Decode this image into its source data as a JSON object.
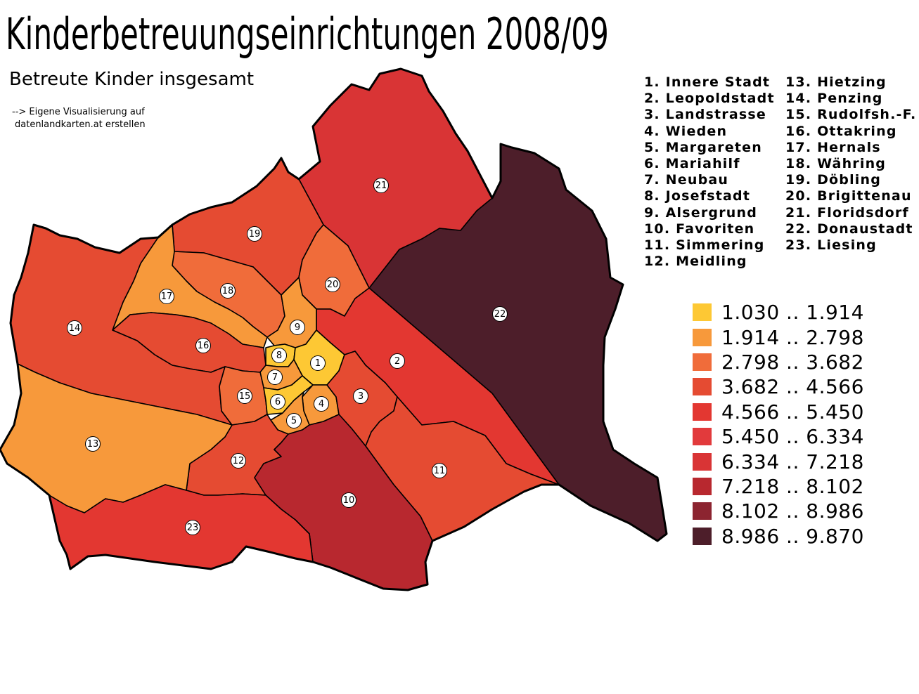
{
  "title": "Kinderbetreuungseinrichtungen 2008/09",
  "subtitle": "Betreute Kinder insgesamt",
  "note": {
    "line1": "--> Eigene Visualisierung auf",
    "line2": "datenlandkarten.at erstellen"
  },
  "district_names": {
    "column1": [
      "1. Innere Stadt",
      "2. Leopoldstadt",
      "3. Landstrasse",
      "4. Wieden",
      "5. Margareten",
      "6. Mariahilf",
      "7. Neubau",
      "8. Josefstadt",
      "9. Alsergrund",
      "10. Favoriten",
      "11. Simmering",
      "12. Meidling"
    ],
    "column2": [
      "13. Hietzing",
      "14. Penzing",
      "15. Rudolfsh.-F.",
      "16. Ottakring",
      "17. Hernals",
      "18. Währing",
      "19. Döbling",
      "20. Brigittenau",
      "21. Floridsdorf",
      "22. Donaustadt",
      "23. Liesing"
    ]
  },
  "legend": [
    {
      "label": "1.030 .. 1.914",
      "color": "#fdc834"
    },
    {
      "label": "1.914 .. 2.798",
      "color": "#f7993b"
    },
    {
      "label": "2.798 .. 3.682",
      "color": "#f06c3a"
    },
    {
      "label": "3.682 .. 4.566",
      "color": "#e54b32"
    },
    {
      "label": "4.566 .. 5.450",
      "color": "#e33731"
    },
    {
      "label": "5.450 .. 6.334",
      "color": "#e23a3c"
    },
    {
      "label": "6.334 .. 7.218",
      "color": "#d93435"
    },
    {
      "label": "7.218 .. 8.102",
      "color": "#b8282f"
    },
    {
      "label": "8.102 .. 8.986",
      "color": "#8c2430"
    },
    {
      "label": "8.986 .. 9.870",
      "color": "#4d1e2a"
    }
  ],
  "districts": [
    {
      "number": "1",
      "class": 0
    },
    {
      "number": "2",
      "class": 4
    },
    {
      "number": "3",
      "class": 3
    },
    {
      "number": "4",
      "class": 1
    },
    {
      "number": "5",
      "class": 1
    },
    {
      "number": "6",
      "class": 0
    },
    {
      "number": "7",
      "class": 1
    },
    {
      "number": "8",
      "class": 0
    },
    {
      "number": "9",
      "class": 1
    },
    {
      "number": "10",
      "class": 7
    },
    {
      "number": "11",
      "class": 3
    },
    {
      "number": "12",
      "class": 3
    },
    {
      "number": "13",
      "class": 1
    },
    {
      "number": "14",
      "class": 3
    },
    {
      "number": "15",
      "class": 2
    },
    {
      "number": "16",
      "class": 3
    },
    {
      "number": "17",
      "class": 1
    },
    {
      "number": "18",
      "class": 2
    },
    {
      "number": "19",
      "class": 3
    },
    {
      "number": "20",
      "class": 2
    },
    {
      "number": "21",
      "class": 6
    },
    {
      "number": "22",
      "class": 9
    },
    {
      "number": "23",
      "class": 4
    }
  ]
}
